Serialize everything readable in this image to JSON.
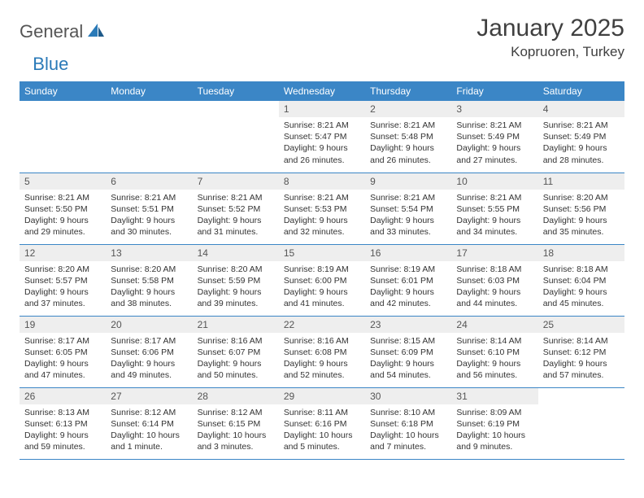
{
  "logo": {
    "general": "General",
    "blue": "Blue"
  },
  "title": "January 2025",
  "location": "Kopruoren, Turkey",
  "colors": {
    "header_bg": "#3b86c6",
    "header_text": "#ffffff",
    "daynum_bg": "#eeeeee",
    "row_border": "#3b86c6",
    "body_text": "#333333",
    "logo_gray": "#555555",
    "logo_blue": "#2a7ab8",
    "background": "#ffffff"
  },
  "weekdays": [
    "Sunday",
    "Monday",
    "Tuesday",
    "Wednesday",
    "Thursday",
    "Friday",
    "Saturday"
  ],
  "weeks": [
    [
      null,
      null,
      null,
      {
        "n": "1",
        "sr": "8:21 AM",
        "ss": "5:47 PM",
        "dl": "9 hours and 26 minutes."
      },
      {
        "n": "2",
        "sr": "8:21 AM",
        "ss": "5:48 PM",
        "dl": "9 hours and 26 minutes."
      },
      {
        "n": "3",
        "sr": "8:21 AM",
        "ss": "5:49 PM",
        "dl": "9 hours and 27 minutes."
      },
      {
        "n": "4",
        "sr": "8:21 AM",
        "ss": "5:49 PM",
        "dl": "9 hours and 28 minutes."
      }
    ],
    [
      {
        "n": "5",
        "sr": "8:21 AM",
        "ss": "5:50 PM",
        "dl": "9 hours and 29 minutes."
      },
      {
        "n": "6",
        "sr": "8:21 AM",
        "ss": "5:51 PM",
        "dl": "9 hours and 30 minutes."
      },
      {
        "n": "7",
        "sr": "8:21 AM",
        "ss": "5:52 PM",
        "dl": "9 hours and 31 minutes."
      },
      {
        "n": "8",
        "sr": "8:21 AM",
        "ss": "5:53 PM",
        "dl": "9 hours and 32 minutes."
      },
      {
        "n": "9",
        "sr": "8:21 AM",
        "ss": "5:54 PM",
        "dl": "9 hours and 33 minutes."
      },
      {
        "n": "10",
        "sr": "8:21 AM",
        "ss": "5:55 PM",
        "dl": "9 hours and 34 minutes."
      },
      {
        "n": "11",
        "sr": "8:20 AM",
        "ss": "5:56 PM",
        "dl": "9 hours and 35 minutes."
      }
    ],
    [
      {
        "n": "12",
        "sr": "8:20 AM",
        "ss": "5:57 PM",
        "dl": "9 hours and 37 minutes."
      },
      {
        "n": "13",
        "sr": "8:20 AM",
        "ss": "5:58 PM",
        "dl": "9 hours and 38 minutes."
      },
      {
        "n": "14",
        "sr": "8:20 AM",
        "ss": "5:59 PM",
        "dl": "9 hours and 39 minutes."
      },
      {
        "n": "15",
        "sr": "8:19 AM",
        "ss": "6:00 PM",
        "dl": "9 hours and 41 minutes."
      },
      {
        "n": "16",
        "sr": "8:19 AM",
        "ss": "6:01 PM",
        "dl": "9 hours and 42 minutes."
      },
      {
        "n": "17",
        "sr": "8:18 AM",
        "ss": "6:03 PM",
        "dl": "9 hours and 44 minutes."
      },
      {
        "n": "18",
        "sr": "8:18 AM",
        "ss": "6:04 PM",
        "dl": "9 hours and 45 minutes."
      }
    ],
    [
      {
        "n": "19",
        "sr": "8:17 AM",
        "ss": "6:05 PM",
        "dl": "9 hours and 47 minutes."
      },
      {
        "n": "20",
        "sr": "8:17 AM",
        "ss": "6:06 PM",
        "dl": "9 hours and 49 minutes."
      },
      {
        "n": "21",
        "sr": "8:16 AM",
        "ss": "6:07 PM",
        "dl": "9 hours and 50 minutes."
      },
      {
        "n": "22",
        "sr": "8:16 AM",
        "ss": "6:08 PM",
        "dl": "9 hours and 52 minutes."
      },
      {
        "n": "23",
        "sr": "8:15 AM",
        "ss": "6:09 PM",
        "dl": "9 hours and 54 minutes."
      },
      {
        "n": "24",
        "sr": "8:14 AM",
        "ss": "6:10 PM",
        "dl": "9 hours and 56 minutes."
      },
      {
        "n": "25",
        "sr": "8:14 AM",
        "ss": "6:12 PM",
        "dl": "9 hours and 57 minutes."
      }
    ],
    [
      {
        "n": "26",
        "sr": "8:13 AM",
        "ss": "6:13 PM",
        "dl": "9 hours and 59 minutes."
      },
      {
        "n": "27",
        "sr": "8:12 AM",
        "ss": "6:14 PM",
        "dl": "10 hours and 1 minute."
      },
      {
        "n": "28",
        "sr": "8:12 AM",
        "ss": "6:15 PM",
        "dl": "10 hours and 3 minutes."
      },
      {
        "n": "29",
        "sr": "8:11 AM",
        "ss": "6:16 PM",
        "dl": "10 hours and 5 minutes."
      },
      {
        "n": "30",
        "sr": "8:10 AM",
        "ss": "6:18 PM",
        "dl": "10 hours and 7 minutes."
      },
      {
        "n": "31",
        "sr": "8:09 AM",
        "ss": "6:19 PM",
        "dl": "10 hours and 9 minutes."
      },
      null
    ]
  ],
  "labels": {
    "sunrise": "Sunrise:",
    "sunset": "Sunset:",
    "daylight": "Daylight:"
  }
}
